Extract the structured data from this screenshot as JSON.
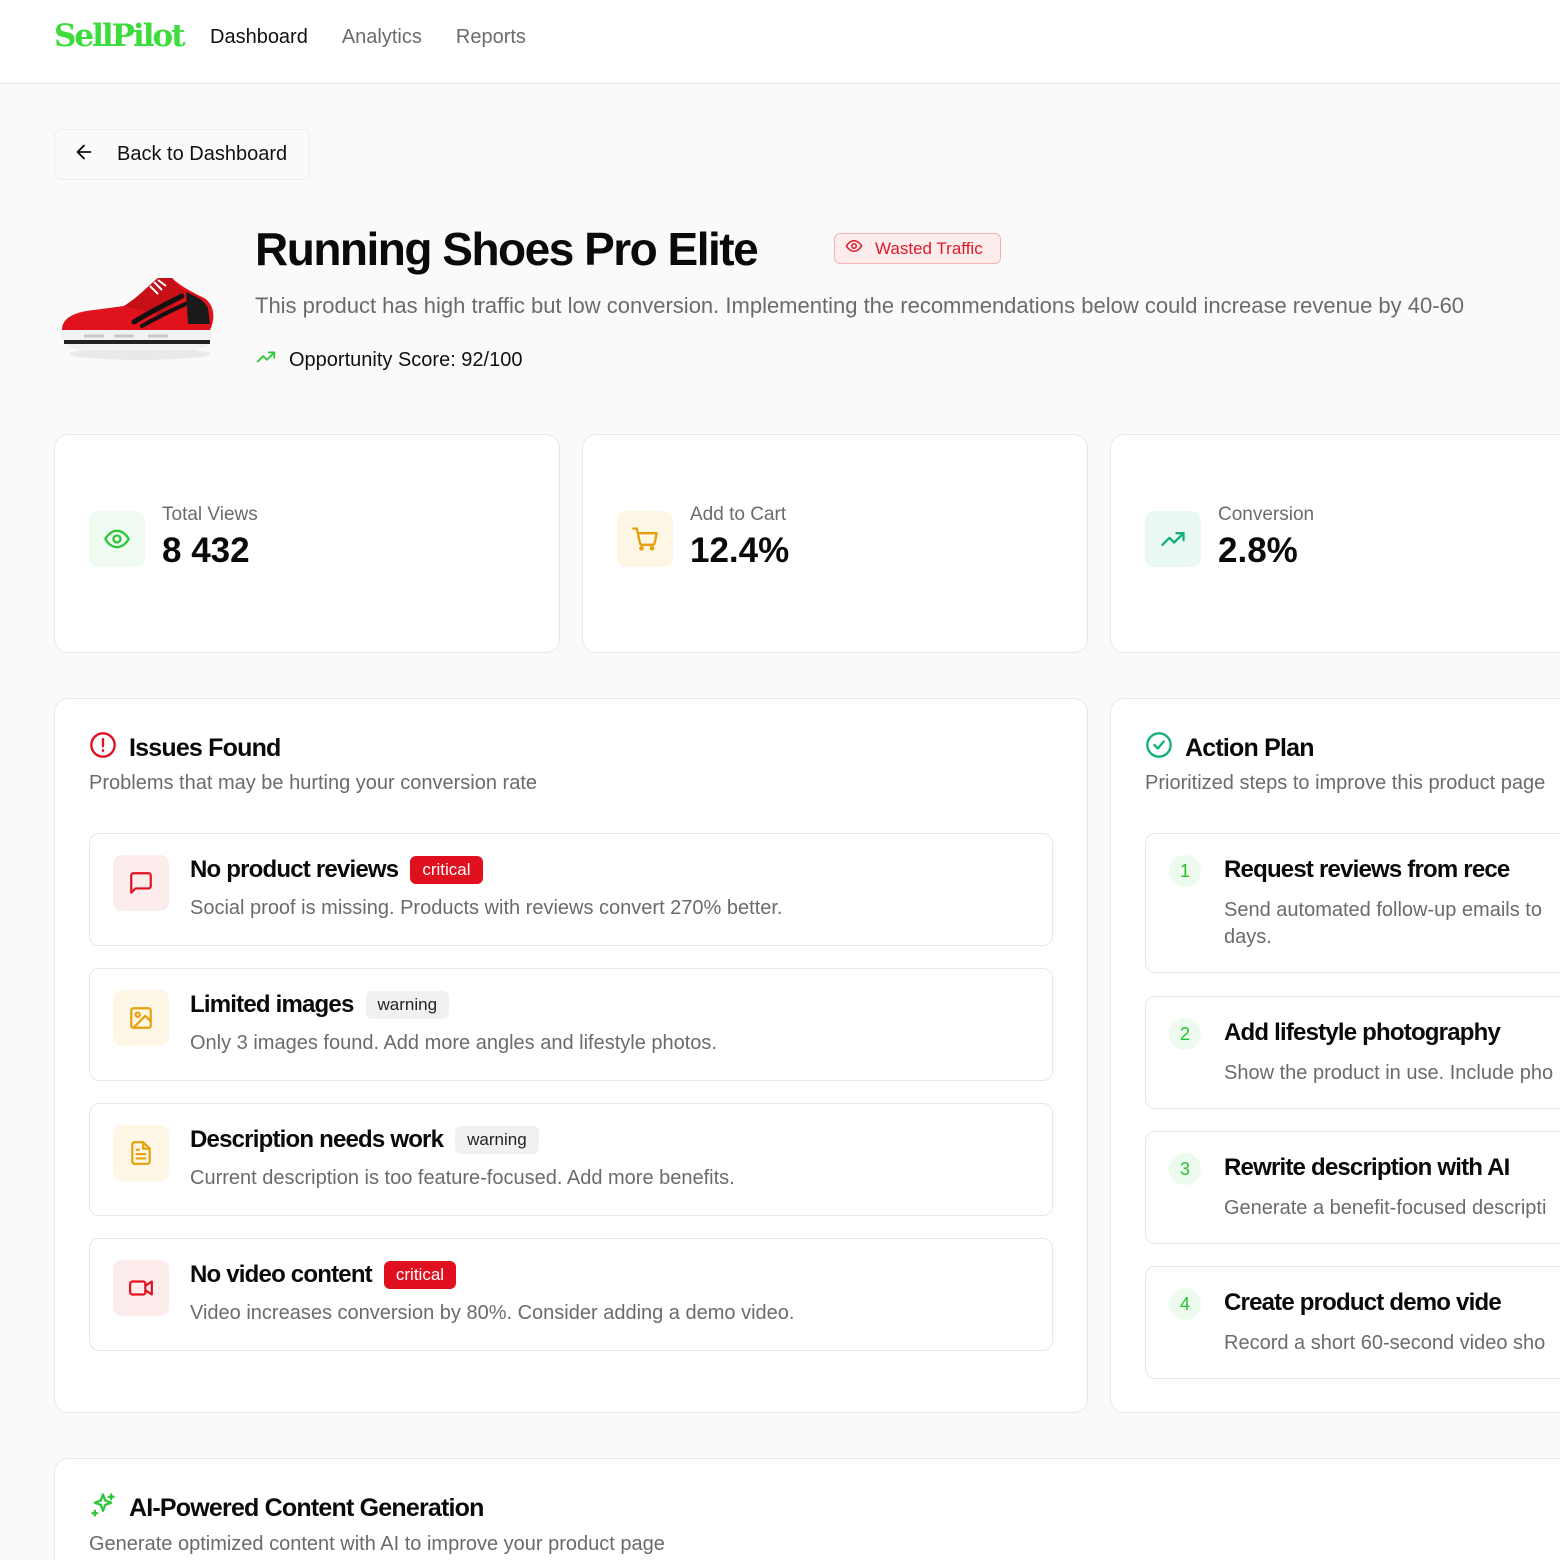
{
  "header": {
    "logo": "SellPilot",
    "nav": [
      {
        "label": "Dashboard",
        "active": true
      },
      {
        "label": "Analytics",
        "active": false
      },
      {
        "label": "Reports",
        "active": false
      }
    ]
  },
  "back_button": {
    "label": "Back to Dashboard",
    "icon": "arrow-left-icon"
  },
  "product": {
    "title": "Running Shoes Pro Elite",
    "badge": "Wasted Traffic",
    "description": "This product has high traffic but low conversion. Implementing the recommendations below could increase revenue by 40-60",
    "opportunity": "Opportunity Score: 92/100"
  },
  "stats": [
    {
      "label": "Total Views",
      "value": "8 432",
      "icon": "eye-icon",
      "color": "#2fc63a",
      "bg": "#effbf0"
    },
    {
      "label": "Add to Cart",
      "value": "12.4%",
      "icon": "cart-icon",
      "color": "#e7a00c",
      "bg": "#fff7e6"
    },
    {
      "label": "Conversion",
      "value": "2.8%",
      "icon": "trending-up-icon",
      "color": "#12b07a",
      "bg": "#e9f9f2"
    }
  ],
  "issues": {
    "title": "Issues Found",
    "subtitle": "Problems that may be hurting your conversion rate",
    "items": [
      {
        "title": "No product reviews",
        "badge": "critical",
        "text": "Social proof is missing. Products with reviews convert 270% better.",
        "icon": "message-icon"
      },
      {
        "title": "Limited images",
        "badge": "warning",
        "text": "Only 3 images found. Add more angles and lifestyle photos.",
        "icon": "image-icon"
      },
      {
        "title": "Description needs work",
        "badge": "warning",
        "text": "Current description is too feature-focused. Add more benefits.",
        "icon": "document-icon"
      },
      {
        "title": "No video content",
        "badge": "critical",
        "text": "Video increases conversion by 80%. Consider adding a demo video.",
        "icon": "video-icon"
      }
    ]
  },
  "action_plan": {
    "title": "Action Plan",
    "subtitle": "Prioritized steps to improve this product page",
    "items": [
      {
        "num": "1",
        "title": "Request reviews from rece",
        "text": "Send automated follow-up emails to",
        "text2": "days."
      },
      {
        "num": "2",
        "title": "Add lifestyle photography",
        "text": "Show the product in use. Include pho"
      },
      {
        "num": "3",
        "title": "Rewrite description with AI",
        "text": "Generate a benefit-focused descripti"
      },
      {
        "num": "4",
        "title": "Create product demo vide",
        "text": "Record a short 60-second video sho"
      }
    ]
  },
  "ai_section": {
    "title": "AI-Powered Content Generation",
    "subtitle": "Generate optimized content with AI to improve your product page"
  },
  "colors": {
    "brand": "#3ddc3d",
    "critical": "#e0101e",
    "warning_icon": "#e7a00c",
    "success": "#12b07a"
  }
}
